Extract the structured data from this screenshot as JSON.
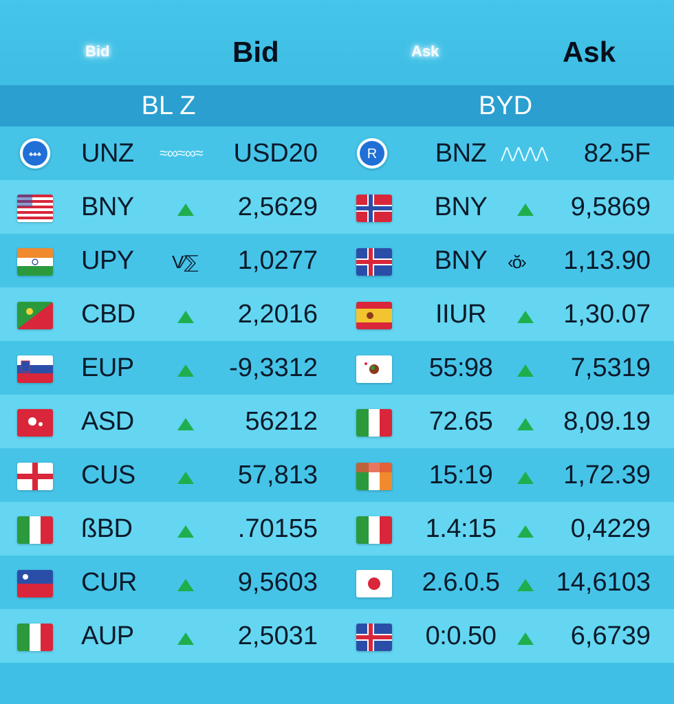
{
  "header": {
    "bid_small": "Bid",
    "bid": "Bid",
    "ask_small": "Ask",
    "ask": "Ask"
  },
  "left_panel": {
    "title": "BL Z",
    "rows": [
      {
        "code": "UNZ",
        "value": "USD20",
        "indicator": "wave",
        "flag": "globe-badge"
      },
      {
        "code": "BNY",
        "value": "2,5629",
        "indicator": "up",
        "flag": "us-stripes"
      },
      {
        "code": "UPY",
        "value": "1,0277",
        "indicator": "glyph",
        "glyph": "V⁄⅀",
        "flag": "india"
      },
      {
        "code": "CBD",
        "value": "2,2016",
        "indicator": "up",
        "flag": "green-red-diagonal"
      },
      {
        "code": "EUP",
        "value": "-9,3312",
        "indicator": "up",
        "flag": "slovenia"
      },
      {
        "code": "ASD",
        "value": "56212",
        "indicator": "up",
        "flag": "red-emblem"
      },
      {
        "code": "CUS",
        "value": "57,813",
        "indicator": "up",
        "flag": "red-cross"
      },
      {
        "code": "ßBD",
        "value": ".70155",
        "indicator": "up",
        "flag": "italy"
      },
      {
        "code": "CUR",
        "value": "9,5603",
        "indicator": "up",
        "flag": "blue-red-star"
      },
      {
        "code": "AUP",
        "value": "2,5031",
        "indicator": "up",
        "flag": "italy"
      }
    ]
  },
  "right_panel": {
    "title": "BYD",
    "rows": [
      {
        "code": "BNZ",
        "value": "82.5F",
        "indicator": "wave",
        "flag": "r-badge",
        "badge_letter": "R"
      },
      {
        "code": "BNY",
        "value": "9,5869",
        "indicator": "up",
        "flag": "norway"
      },
      {
        "code": "BNY",
        "value": "1,13.90",
        "indicator": "glyph",
        "glyph": "‹ŏ›",
        "flag": "iceland"
      },
      {
        "code": "IIUR",
        "value": "1,30.07",
        "indicator": "up",
        "flag": "spain"
      },
      {
        "code": "55:98",
        "value": "7,5319",
        "indicator": "up",
        "flag": "mexico"
      },
      {
        "code": "72.65",
        "value": "8,09.19",
        "indicator": "up",
        "flag": "italy"
      },
      {
        "code": "15:19",
        "value": "1,72.39",
        "indicator": "up",
        "flag": "orange-green"
      },
      {
        "code": "1.4:15",
        "value": "0,4229",
        "indicator": "up",
        "flag": "italy"
      },
      {
        "code": "2.6.0.5",
        "value": "14,6103",
        "indicator": "up",
        "flag": "japan"
      },
      {
        "code": "0:0.50",
        "value": "6,6739",
        "indicator": "up",
        "flag": "iceland"
      }
    ]
  },
  "colors": {
    "background": "#40bfe6",
    "panel_title": "#2b9fd0",
    "row_even": "#46c4e8",
    "row_odd": "#64d6f1",
    "up_arrow": "#1fae4d",
    "text": "#0a1a2a"
  }
}
